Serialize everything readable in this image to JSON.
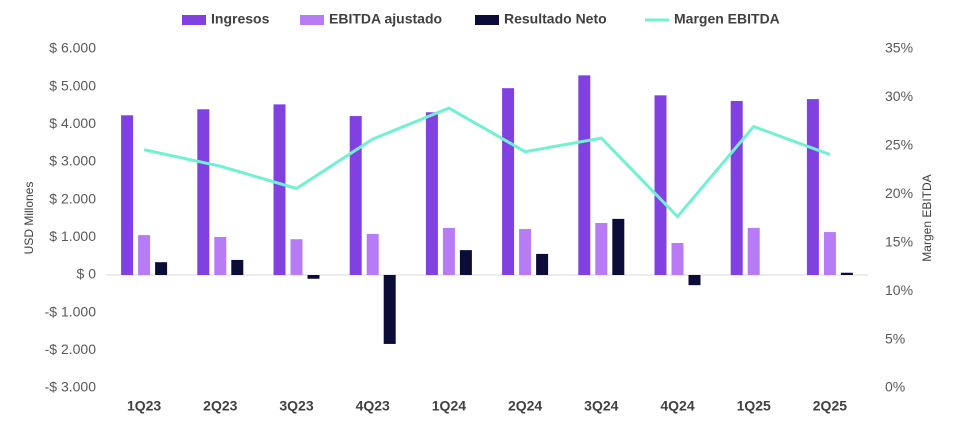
{
  "chart_data": {
    "type": "bar_line",
    "y_label": "USD Millones",
    "y2_label": "Margen EBITDA",
    "categories": [
      "1Q23",
      "2Q23",
      "3Q23",
      "4Q23",
      "1Q24",
      "2Q24",
      "3Q24",
      "4Q24",
      "1Q25",
      "2Q25"
    ],
    "series": [
      {
        "name": "Ingresos",
        "color": "#8041e0",
        "kind": "bar",
        "values": [
          4240,
          4400,
          4530,
          4220,
          4320,
          4960,
          5300,
          4770,
          4620,
          4670
        ]
      },
      {
        "name": "EBITDA ajustado",
        "color": "#b77cf5",
        "kind": "bar",
        "values": [
          1060,
          1010,
          950,
          1090,
          1250,
          1220,
          1380,
          850,
          1250,
          1140
        ]
      },
      {
        "name": "Resultado Neto",
        "color": "#0c0c38",
        "kind": "bar",
        "values": [
          340,
          400,
          -100,
          -1830,
          660,
          560,
          1490,
          -270,
          0,
          60
        ]
      },
      {
        "name": "Margen EBITDA",
        "color": "#72f0d2",
        "kind": "line",
        "axis": "y2",
        "values": [
          24.6,
          22.9,
          20.6,
          25.7,
          28.9,
          24.4,
          25.8,
          17.7,
          27.0,
          24.1
        ]
      }
    ],
    "ylim": [
      -3000,
      6000
    ],
    "yticks": [
      {
        "value": -3000,
        "label": "-$ 3.000"
      },
      {
        "value": -2000,
        "label": "-$ 2.000"
      },
      {
        "value": -1000,
        "label": "-$ 1.000"
      },
      {
        "value": 0,
        "label": "$ 0"
      },
      {
        "value": 1000,
        "label": "$ 1.000"
      },
      {
        "value": 2000,
        "label": "$ 2.000"
      },
      {
        "value": 3000,
        "label": "$ 3.000"
      },
      {
        "value": 4000,
        "label": "$ 4.000"
      },
      {
        "value": 5000,
        "label": "$ 5.000"
      },
      {
        "value": 6000,
        "label": "$ 6.000"
      }
    ],
    "y2lim": [
      0,
      35
    ],
    "y2ticks": [
      {
        "value": 0,
        "label": "0%"
      },
      {
        "value": 5,
        "label": "5%"
      },
      {
        "value": 10,
        "label": "10%"
      },
      {
        "value": 15,
        "label": "15%"
      },
      {
        "value": 20,
        "label": "20%"
      },
      {
        "value": 25,
        "label": "25%"
      },
      {
        "value": 30,
        "label": "30%"
      },
      {
        "value": 35,
        "label": "35%"
      }
    ],
    "legend": "top"
  }
}
